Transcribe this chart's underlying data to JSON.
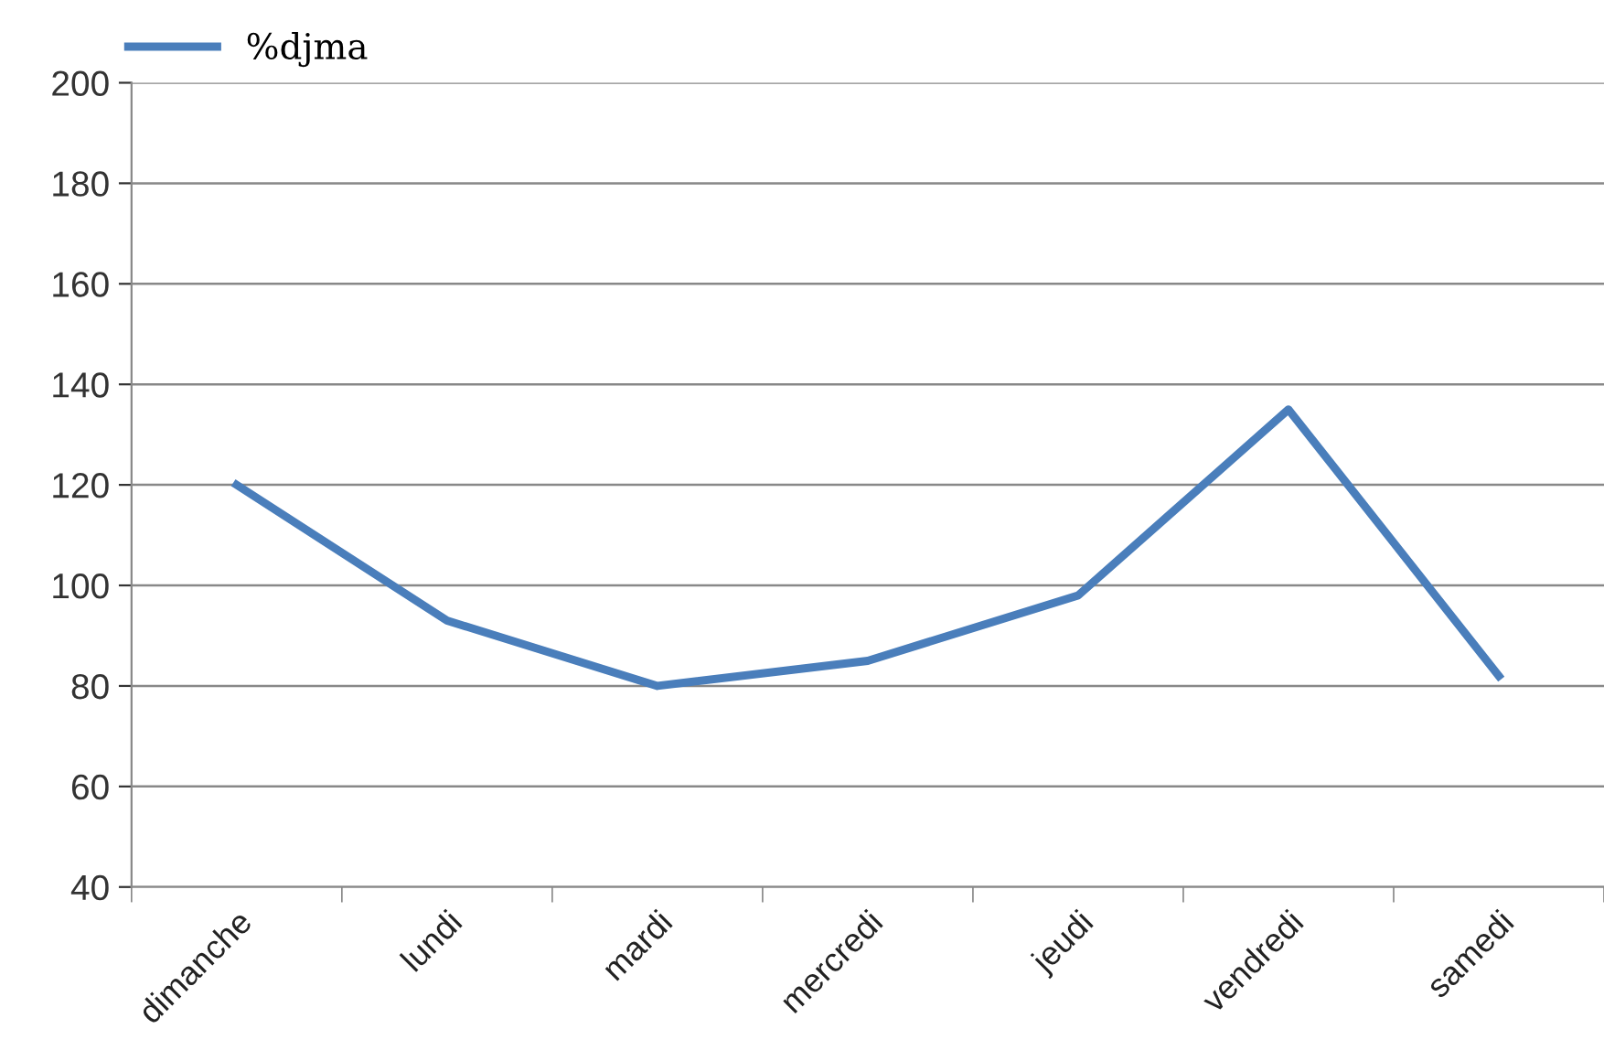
{
  "chart_data": {
    "type": "line",
    "categories": [
      "dimanche",
      "lundi",
      "mardi",
      "mercredi",
      "jeudi",
      "vendredi",
      "samedi"
    ],
    "series": [
      {
        "name": "%djma",
        "color": "#4a7ebb",
        "values": [
          120,
          93,
          80,
          85,
          98,
          135,
          82
        ]
      }
    ],
    "ylim": [
      40,
      200
    ],
    "yticks": [
      40,
      60,
      80,
      100,
      120,
      140,
      160,
      180,
      200
    ],
    "grid": "y",
    "legend": "top left",
    "marker": "none",
    "line_style": "solid"
  }
}
